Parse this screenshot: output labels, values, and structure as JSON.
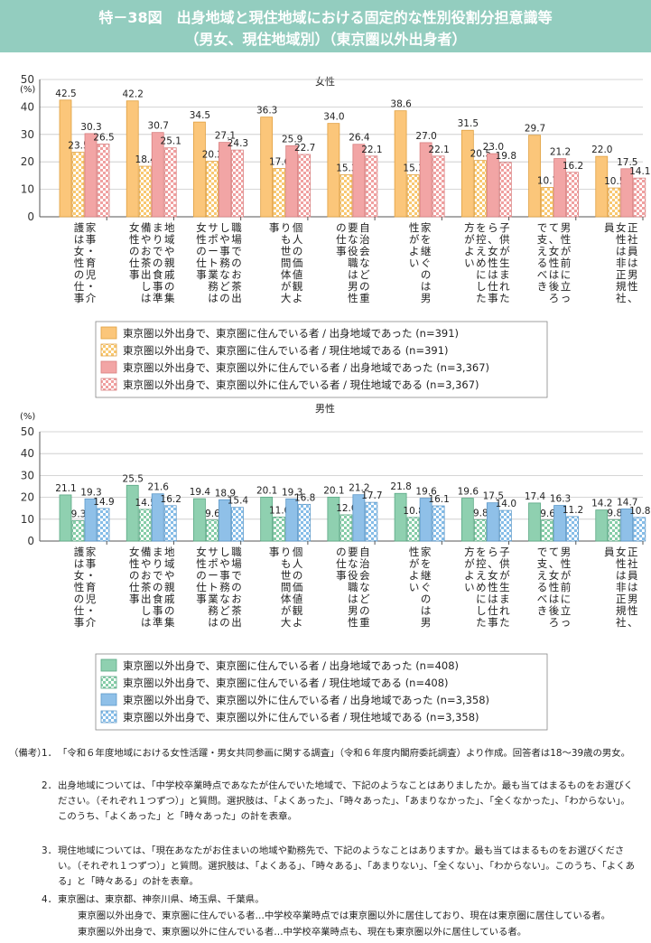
{
  "figure": {
    "title_line1": "特－38図　出身地域と現住地域における固定的な性別役割分担意識等",
    "title_line2": "（男女、現住地域別）（東京圏以外出身者）"
  },
  "colors": {
    "female_local_solid": "#fbc67a",
    "female_local_pattern": "#f8d596",
    "female_nonlocal_solid": "#f2a5a5",
    "female_nonlocal_pattern": "#f2b3b3",
    "male_local_solid": "#8fd0b0",
    "male_local_pattern": "#a8dcc3",
    "male_nonlocal_solid": "#8fc0e8",
    "male_nonlocal_pattern": "#a9cdee"
  },
  "chart_data": [
    {
      "type": "bar",
      "title": "女性",
      "ylabel": "(%)",
      "ylim": [
        0,
        50
      ],
      "yticks": [
        0,
        10,
        20,
        30,
        40,
        50
      ],
      "grid": true,
      "legend_position": "bottom-left",
      "categories": [
        "家事・育児・介護は女性の仕事",
        "地域や親戚の集まりでの食事準備やお茶出しは女性の仕事",
        "職場でのお茶出しや事務などのサポート業務は女性の仕事",
        "個人の価値観よりも世間体が大事",
        "自治会などの重要な役職は男性の仕事",
        "家を継ぐのは男性がよい",
        "子供が生まれたら、女性は仕事を控えめにした方がよい",
        "男性が前に立って、女性は後ろで支えるべき",
        "正社員は男性、女性は非正規社員"
      ],
      "series": [
        {
          "name": "東京圏以外出身で、東京圏に住んでいる者 / 出身地域であった (n=391)",
          "values": [
            42.5,
            42.2,
            34.5,
            36.3,
            34.0,
            38.6,
            31.5,
            29.7,
            22.0
          ]
        },
        {
          "name": "東京圏以外出身で、東京圏に住んでいる者 / 現住地域である (n=391)",
          "values": [
            23.5,
            18.4,
            20.2,
            17.6,
            15.3,
            15.3,
            20.5,
            10.7,
            10.5
          ]
        },
        {
          "name": "東京圏以外出身で、東京圏以外に住んでいる者 / 出身地域であった (n=3,367)",
          "values": [
            30.3,
            30.7,
            27.1,
            25.9,
            26.4,
            27.0,
            23.0,
            21.2,
            17.5
          ]
        },
        {
          "name": "東京圏以外出身で、東京圏以外に住んでいる者 / 現住地域である (n=3,367)",
          "values": [
            26.5,
            25.1,
            24.3,
            22.7,
            22.1,
            22.1,
            19.8,
            16.2,
            14.1
          ]
        }
      ]
    },
    {
      "type": "bar",
      "title": "男性",
      "ylabel": "(%)",
      "ylim": [
        0,
        50
      ],
      "yticks": [
        0,
        10,
        20,
        30,
        40,
        50
      ],
      "grid": true,
      "legend_position": "bottom-left",
      "categories": [
        "家事・育児・介護は女性の仕事",
        "地域や親戚の集まりでの食事準備やお茶出しは女性の仕事",
        "職場でのお茶出しや事務などのサポート業務は女性の仕事",
        "個人の価値観よりも世間体が大事",
        "自治会などの重要な役職は男性の仕事",
        "家を継ぐのは男性がよい",
        "子供が生まれたら、女性は仕事を控えめにした方がよい",
        "男性が前に立って、女性は後ろで支えるべき",
        "正社員は男性、女性は非正規社員"
      ],
      "series": [
        {
          "name": "東京圏以外出身で、東京圏に住んでいる者 / 出身地域であった (n=408)",
          "values": [
            21.1,
            25.5,
            19.4,
            20.1,
            20.1,
            21.8,
            19.6,
            17.4,
            14.2
          ]
        },
        {
          "name": "東京圏以外出身で、東京圏に住んでいる者 / 現住地域である (n=408)",
          "values": [
            9.3,
            14.5,
            9.6,
            11.0,
            12.0,
            10.8,
            9.8,
            9.6,
            9.8
          ]
        },
        {
          "name": "東京圏以外出身で、東京圏以外に住んでいる者 / 出身地域であった (n=3,358)",
          "values": [
            19.3,
            21.6,
            18.9,
            19.3,
            21.2,
            19.6,
            17.5,
            16.3,
            14.7
          ]
        },
        {
          "name": "東京圏以外出身で、東京圏以外に住んでいる者 / 現住地域である (n=3,358)",
          "values": [
            14.9,
            16.2,
            15.4,
            16.8,
            17.7,
            16.1,
            14.0,
            11.2,
            10.8
          ]
        }
      ]
    }
  ],
  "notes": {
    "heading": "（備考）",
    "items": [
      {
        "num": "1．",
        "text": "「令和６年度地域における女性活躍・男女共同参画に関する調査」（令和６年度内閣府委託調査）より作成。回答者は18～39歳の男女。"
      },
      {
        "num": "2．",
        "text": "出身地域については、「中学校卒業時点であなたが住んでいた地域で、下記のようなことはありましたか。最も当てはまるものをお選びください。（それぞれ１つずつ）」と質問。選択肢は、「よくあった」、「時々あった」、「あまりなかった」、「全くなかった」、「わからない」。このうち、「よくあった」と「時々あった」の計を表章。"
      },
      {
        "num": "3．",
        "text": "現住地域については、「現在あなたがお住まいの地域や勤務先で、下記のようなことはありますか。最も当てはまるものをお選びください。（それぞれ１つずつ）」と質問。選択肢は、「よくある」、「時々ある」、「あまりない」、「全くない」、「わからない」。このうち、「よくある」と「時々ある」の計を表章。"
      },
      {
        "num": "4．",
        "text": "東京圏は、東京都、神奈川県、埼玉県、千葉県。"
      }
    ],
    "sub1": "東京圏以外出身で、東京圏に住んでいる者…中学校卒業時点では東京圏以外に居住しており、現在は東京圏に居住している者。",
    "sub2": "東京圏以外出身で、東京圏以外に住んでいる者…中学校卒業時点も、現在も東京圏以外に居住している者。"
  }
}
